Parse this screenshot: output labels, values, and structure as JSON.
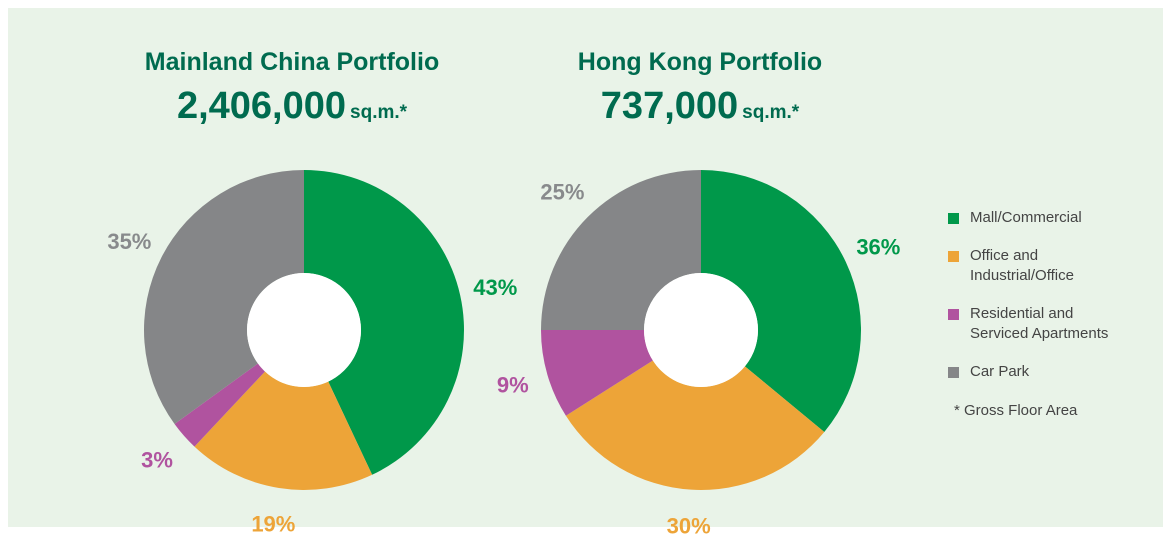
{
  "categories": [
    "Mall/Commercial",
    "Office and Industrial/Office",
    "Residential and Serviced Apartments",
    "Car Park"
  ],
  "colors": [
    "#00984a",
    "#eda438",
    "#b0539f",
    "#858688"
  ],
  "note": "* Gross Floor Area",
  "chart_data": [
    {
      "type": "donut",
      "title": "Mainland China Portfolio",
      "total": "2,406,000",
      "unit": "sq.m.*",
      "values": [
        43,
        19,
        3,
        35
      ],
      "value_labels": [
        "43%",
        "19%",
        "3%",
        "35%"
      ]
    },
    {
      "type": "donut",
      "title": "Hong Kong Portfolio",
      "total": "737,000",
      "unit": "sq.m.*",
      "values": [
        36,
        30,
        9,
        25
      ],
      "value_labels": [
        "36%",
        "30%",
        "9%",
        "25%"
      ]
    }
  ]
}
